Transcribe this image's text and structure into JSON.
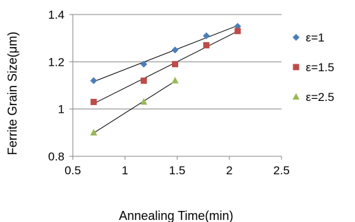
{
  "chart_data": {
    "type": "scatter",
    "xlabel": "Annealing Time(min)",
    "ylabel": "Ferrite Grain Size(μm)",
    "xlim": [
      0.5,
      2.5
    ],
    "ylim": [
      0.8,
      1.4
    ],
    "x_ticks": [
      "0.5",
      "1",
      "1.5",
      "2",
      "2.5"
    ],
    "y_ticks": [
      "0.8",
      "1",
      "1.2",
      "1.4"
    ],
    "x_tick_values": [
      0.5,
      1,
      1.5,
      2,
      2.5
    ],
    "y_tick_values": [
      0.8,
      1,
      1.2,
      1.4
    ],
    "grid": "y-major",
    "legend_position": "right",
    "trendlines": "linear",
    "series": [
      {
        "name": "ε=1",
        "marker": "diamond",
        "color": "#4a7ebb",
        "x": [
          0.7,
          1.18,
          1.48,
          1.78,
          2.08
        ],
        "y": [
          1.12,
          1.19,
          1.25,
          1.31,
          1.35
        ]
      },
      {
        "name": "ε=1.5",
        "marker": "square",
        "color": "#be4b48",
        "x": [
          0.7,
          1.18,
          1.48,
          1.78,
          2.08
        ],
        "y": [
          1.03,
          1.12,
          1.19,
          1.27,
          1.33
        ]
      },
      {
        "name": "ε=2.5",
        "marker": "triangle",
        "color": "#98b954",
        "x": [
          0.7,
          1.18,
          1.48
        ],
        "y": [
          0.9,
          1.03,
          1.12
        ]
      }
    ]
  }
}
